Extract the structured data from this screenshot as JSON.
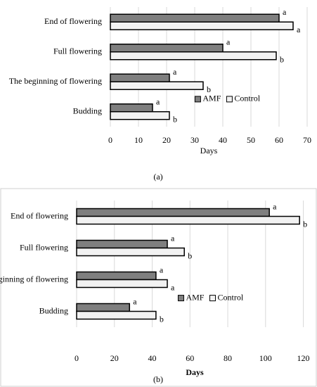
{
  "chart_data": [
    {
      "type": "bar",
      "orientation": "horizontal",
      "caption": "(a)",
      "x_label": "Days",
      "categories": [
        "End of flowering",
        "Full flowering",
        "The beginning of flowering",
        "Budding"
      ],
      "series": [
        {
          "name": "AMF",
          "color": "#7f7f7f",
          "values": [
            60,
            40,
            21,
            15
          ],
          "letters": [
            "a",
            "a",
            "a",
            "a"
          ]
        },
        {
          "name": "Control",
          "color": "#f2f2f2",
          "values": [
            65,
            59,
            33,
            21
          ],
          "letters": [
            "a",
            "b",
            "b",
            "b"
          ]
        }
      ],
      "xlim": [
        0,
        70
      ],
      "xticks": [
        0,
        10,
        20,
        30,
        40,
        50,
        60,
        70
      ],
      "grid": true,
      "legend": "center-right"
    },
    {
      "type": "bar",
      "orientation": "horizontal",
      "caption": "(b)",
      "x_label": "Days",
      "categories": [
        "End of flowering",
        "Full flowering",
        "The beginning of flowering",
        "Budding"
      ],
      "series": [
        {
          "name": "AMF",
          "color": "#7f7f7f",
          "values": [
            102,
            48,
            42,
            28
          ],
          "letters": [
            "a",
            "a",
            "a",
            "a"
          ]
        },
        {
          "name": "Control",
          "color": "#f2f2f2",
          "values": [
            118,
            57,
            48,
            42
          ],
          "letters": [
            "b",
            "b",
            "a",
            "b"
          ]
        }
      ],
      "xlim": [
        0,
        125
      ],
      "xticks": [
        0,
        20,
        40,
        60,
        80,
        100,
        120
      ],
      "grid": true,
      "legend": "center-right"
    }
  ]
}
